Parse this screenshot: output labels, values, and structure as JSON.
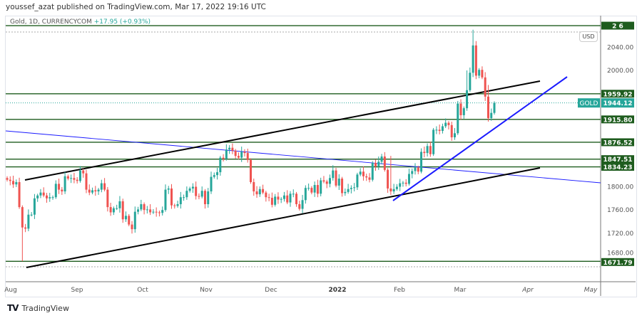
{
  "header": {
    "publisher_line": "youssef_azat published on TradingView.com, Mar 17, 2022 19:16 UTC"
  },
  "legend": {
    "symbol": "Gold, 1D, CURRENCYCOM",
    "change": "+17.95 (+0.93%)"
  },
  "currency_badge": "USD",
  "footer": {
    "logo_mark": "TV",
    "brand": "TradingView"
  },
  "colors": {
    "up": "#26a69a",
    "down": "#ef5350",
    "level": "#1e5c1e",
    "trend_black": "#000000",
    "trend_blue": "#1a1aff",
    "current_price": "#26a69a"
  },
  "chart_data": {
    "type": "candlestick",
    "symbol": "GOLD",
    "y_ticks": [
      "2040.00",
      "2000.00",
      "1800.00",
      "1760.00",
      "1720.00",
      "1680.00"
    ],
    "x_ticks": [
      "Aug",
      "Sep",
      "Oct",
      "Nov",
      "Dec",
      "2022",
      "Feb",
      "Mar",
      "Apr",
      "May"
    ],
    "current_price": {
      "label": "GOLD",
      "value": 1944.12
    },
    "levels": [
      {
        "value": 2077,
        "label_visible_parts": [
          "2",
          "6"
        ]
      },
      {
        "value": 1959.92,
        "label": "1959.92"
      },
      {
        "value": 1915.8,
        "label": "1915.80"
      },
      {
        "value": 1876.52,
        "label": "1876.52"
      },
      {
        "value": 1847.51,
        "label": "1847.51"
      },
      {
        "value": 1834.23,
        "label": "1834.23"
      },
      {
        "value": 1671.79,
        "label": "1671.79"
      }
    ],
    "start_open": 1815,
    "closes": [
      1812,
      1810,
      1804,
      1808,
      1765,
      1730,
      1728,
      1752,
      1752,
      1780,
      1785,
      1790,
      1785,
      1780,
      1782,
      1782,
      1805,
      1795,
      1792,
      1818,
      1814,
      1815,
      1812,
      1810,
      1828,
      1823,
      1795,
      1790,
      1794,
      1792,
      1795,
      1806,
      1795,
      1765,
      1756,
      1763,
      1763,
      1775,
      1744,
      1750,
      1735,
      1727,
      1757,
      1761,
      1770,
      1760,
      1761,
      1756,
      1757,
      1756,
      1755,
      1760,
      1795,
      1797,
      1768,
      1767,
      1770,
      1782,
      1782,
      1793,
      1797,
      1800,
      1784,
      1783,
      1793,
      1770,
      1792,
      1817,
      1820,
      1825,
      1850,
      1848,
      1864,
      1867,
      1862,
      1853,
      1850,
      1860,
      1858,
      1846,
      1808,
      1792,
      1787,
      1796,
      1790,
      1782,
      1781,
      1769,
      1783,
      1778,
      1779,
      1785,
      1773,
      1788,
      1788,
      1770,
      1762,
      1777,
      1798,
      1798,
      1790,
      1803,
      1788,
      1811,
      1809,
      1805,
      1815,
      1828,
      1802,
      1814,
      1789,
      1791,
      1796,
      1798,
      1799,
      1821,
      1826,
      1818,
      1816,
      1812,
      1841,
      1835,
      1843,
      1852,
      1829,
      1797,
      1792,
      1796,
      1800,
      1806,
      1807,
      1805,
      1822,
      1827,
      1833,
      1826,
      1860,
      1858,
      1870,
      1856,
      1898,
      1898,
      1896,
      1904,
      1910,
      1906,
      1885,
      1892,
      1943,
      1923,
      1935,
      1966,
      1996,
      2043,
      1991,
      2001,
      1988,
      1955,
      1918,
      1927,
      1944
    ],
    "wick_overrides": [
      {
        "index": 5,
        "low": 1672
      },
      {
        "index": 158,
        "high": 1975
      },
      {
        "index": 153,
        "high": 2070
      },
      {
        "index": 151,
        "high": 2000
      },
      {
        "index": 126,
        "high": 1853
      }
    ]
  }
}
